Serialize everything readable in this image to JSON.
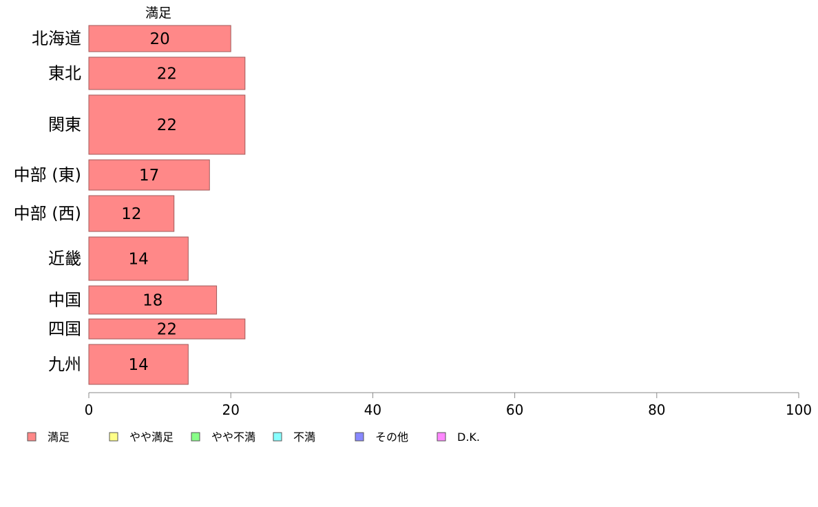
{
  "chart_data": {
    "type": "bar",
    "orientation": "horizontal",
    "series_header": "満足",
    "categories": [
      "北海道",
      "東北",
      "関東",
      "中部 (東)",
      "中部 (西)",
      "近畿",
      "中国",
      "四国",
      "九州"
    ],
    "series": [
      {
        "name": "満足",
        "values": [
          20,
          22,
          22,
          17,
          12,
          14,
          18,
          22,
          14
        ]
      }
    ],
    "bar_labels": [
      "20",
      "22",
      "22",
      "17",
      "12",
      "14",
      "18",
      "22",
      "14"
    ],
    "xlim": [
      0,
      100
    ],
    "x_ticks": [
      0,
      20,
      40,
      60,
      80,
      100
    ],
    "x_tick_labels": [
      "0",
      "20",
      "40",
      "60",
      "80",
      "100"
    ],
    "grid": false,
    "legend": {
      "position": "bottom-left",
      "items": [
        {
          "label": "満足",
          "color": "#FF8888"
        },
        {
          "label": "やや満足",
          "color": "#FFFF88"
        },
        {
          "label": "やや不満",
          "color": "#88FF88"
        },
        {
          "label": "不満",
          "color": "#88FFFF"
        },
        {
          "label": "その他",
          "color": "#8888FF"
        },
        {
          "label": "D.K.",
          "color": "#FF88FF"
        }
      ]
    },
    "colors": {
      "bar_fill": "#FF8888",
      "bar_stroke": "#A05A5A",
      "axis": "#888888"
    }
  }
}
